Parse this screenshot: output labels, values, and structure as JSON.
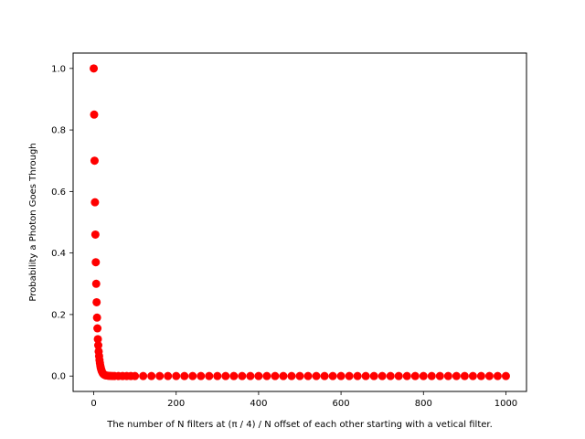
{
  "chart_data": {
    "type": "scatter",
    "title": "",
    "xlabel": "The number of N filters at (π / 4) / N offset of each other starting with a vetical filter.",
    "ylabel": "Probability a Photon Goes Through",
    "xlim": [
      -50,
      1050
    ],
    "ylim": [
      -0.05,
      1.05
    ],
    "xticks": [
      0,
      200,
      400,
      600,
      800,
      1000
    ],
    "yticks": [
      0.0,
      0.2,
      0.4,
      0.6,
      0.8,
      1.0
    ],
    "xtick_labels": [
      "0",
      "200",
      "400",
      "600",
      "800",
      "1000"
    ],
    "ytick_labels": [
      "0.0",
      "0.2",
      "0.4",
      "0.6",
      "0.8",
      "1.0"
    ],
    "grid": false,
    "marker_color": "#ff0000",
    "series": [
      {
        "x": [
          0,
          1,
          2,
          3,
          4,
          5,
          6,
          7,
          8,
          9,
          10,
          11,
          12,
          13,
          14,
          15,
          16,
          17,
          18,
          19,
          20,
          22,
          24,
          26,
          28,
          30,
          35,
          40,
          45,
          50,
          60,
          70,
          80,
          90,
          100,
          120,
          140,
          160,
          180,
          200,
          220,
          240,
          260,
          280,
          300,
          320,
          340,
          360,
          380,
          400,
          420,
          440,
          460,
          480,
          500,
          520,
          540,
          560,
          580,
          600,
          620,
          640,
          660,
          680,
          700,
          720,
          740,
          760,
          780,
          800,
          820,
          840,
          860,
          880,
          900,
          920,
          940,
          960,
          980,
          1000
        ],
        "y": [
          1.0,
          0.85,
          0.7,
          0.565,
          0.46,
          0.37,
          0.3,
          0.24,
          0.19,
          0.155,
          0.12,
          0.1,
          0.08,
          0.065,
          0.052,
          0.042,
          0.034,
          0.027,
          0.022,
          0.018,
          0.014,
          0.009,
          0.006,
          0.004,
          0.003,
          0.002,
          0.001,
          0.0005,
          0.0002,
          0.0001,
          0,
          0,
          0,
          0,
          0,
          0,
          0,
          0,
          0,
          0,
          0,
          0,
          0,
          0,
          0,
          0,
          0,
          0,
          0,
          0,
          0,
          0,
          0,
          0,
          0,
          0,
          0,
          0,
          0,
          0,
          0,
          0,
          0,
          0,
          0,
          0,
          0,
          0,
          0,
          0,
          0,
          0,
          0,
          0,
          0,
          0,
          0,
          0,
          0,
          0
        ]
      }
    ]
  }
}
